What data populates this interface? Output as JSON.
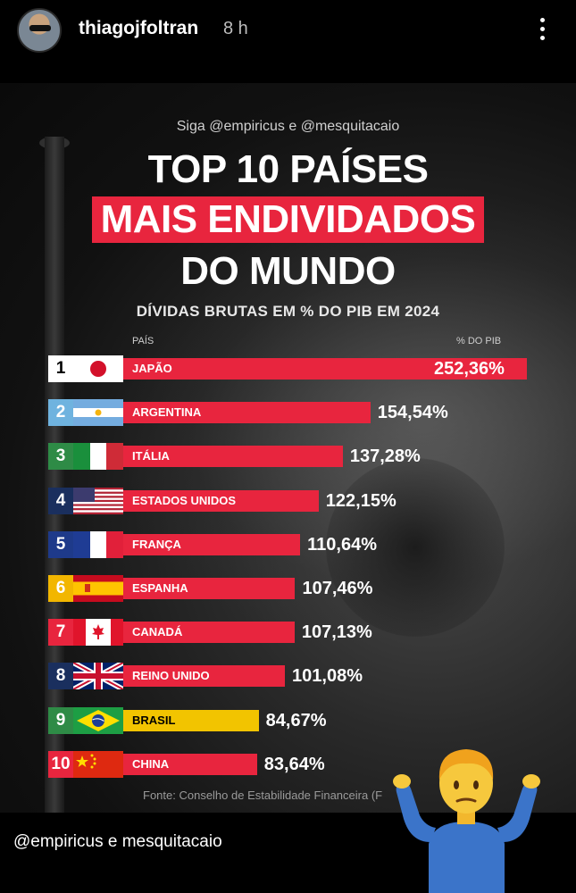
{
  "story": {
    "username": "thiagojfoltran",
    "time_ago": "8 h",
    "caption": "@empiricus e mesquitacaio"
  },
  "icons": {
    "avatar": "profile-photo",
    "more": "more-vertical-icon",
    "sticker": "person-shrugging-emoji"
  },
  "infographic": {
    "follow_line": "Siga @empiricus e @mesquitacaio",
    "title_line_1": "TOP 10 PAÍSES",
    "title_line_2": "MAIS ENDIVIDADOS",
    "title_line_3": "DO MUNDO",
    "subtitle": "DÍVIDAS BRUTAS EM % DO PIB EM 2024",
    "col_country": "PAÍS",
    "col_pct": "% DO PIB",
    "source": "Fonte: Conselho de Estabilidade Financeira (F",
    "accent_color": "#e8253e"
  },
  "chart_data": {
    "type": "bar",
    "orientation": "horizontal",
    "title": "TOP 10 PAÍSES MAIS ENDIVIDADOS DO MUNDO",
    "subtitle": "DÍVIDAS BRUTAS EM % DO PIB EM 2024",
    "xlabel": "% DO PIB",
    "ylabel": "PAÍS",
    "categories": [
      "JAPÃO",
      "ARGENTINA",
      "ITÁLIA",
      "ESTADOS UNIDOS",
      "FRANÇA",
      "ESPANHA",
      "CANADÁ",
      "REINO UNIDO",
      "BRASIL",
      "CHINA"
    ],
    "ranks": [
      "1",
      "2",
      "3",
      "4",
      "5",
      "6",
      "7",
      "8",
      "9",
      "10"
    ],
    "values": [
      252.36,
      154.54,
      137.28,
      122.15,
      110.64,
      107.46,
      107.13,
      101.08,
      84.67,
      83.64
    ],
    "value_labels": [
      "252,36%",
      "154,54%",
      "137,28%",
      "122,15%",
      "110,64%",
      "107,46%",
      "107,13%",
      "101,08%",
      "84,67%",
      "83,64%"
    ],
    "flags": [
      "japan-flag",
      "argentina-flag",
      "italy-flag",
      "usa-flag",
      "france-flag",
      "spain-flag",
      "canada-flag",
      "uk-flag",
      "brazil-flag",
      "china-flag"
    ],
    "rank_colors": [
      "#ffffff",
      "#6fb3df",
      "#2e8b46",
      "#1a2f5e",
      "#1e3a8a",
      "#f2b600",
      "#e8253e",
      "#1a2f5e",
      "#2e8b46",
      "#e8253e"
    ],
    "bar_colors": [
      "#e8253e",
      "#e8253e",
      "#e8253e",
      "#e8253e",
      "#e8253e",
      "#e8253e",
      "#e8253e",
      "#e8253e",
      "#f2c400",
      "#e8253e"
    ],
    "xlim": [
      0,
      252.36
    ]
  }
}
